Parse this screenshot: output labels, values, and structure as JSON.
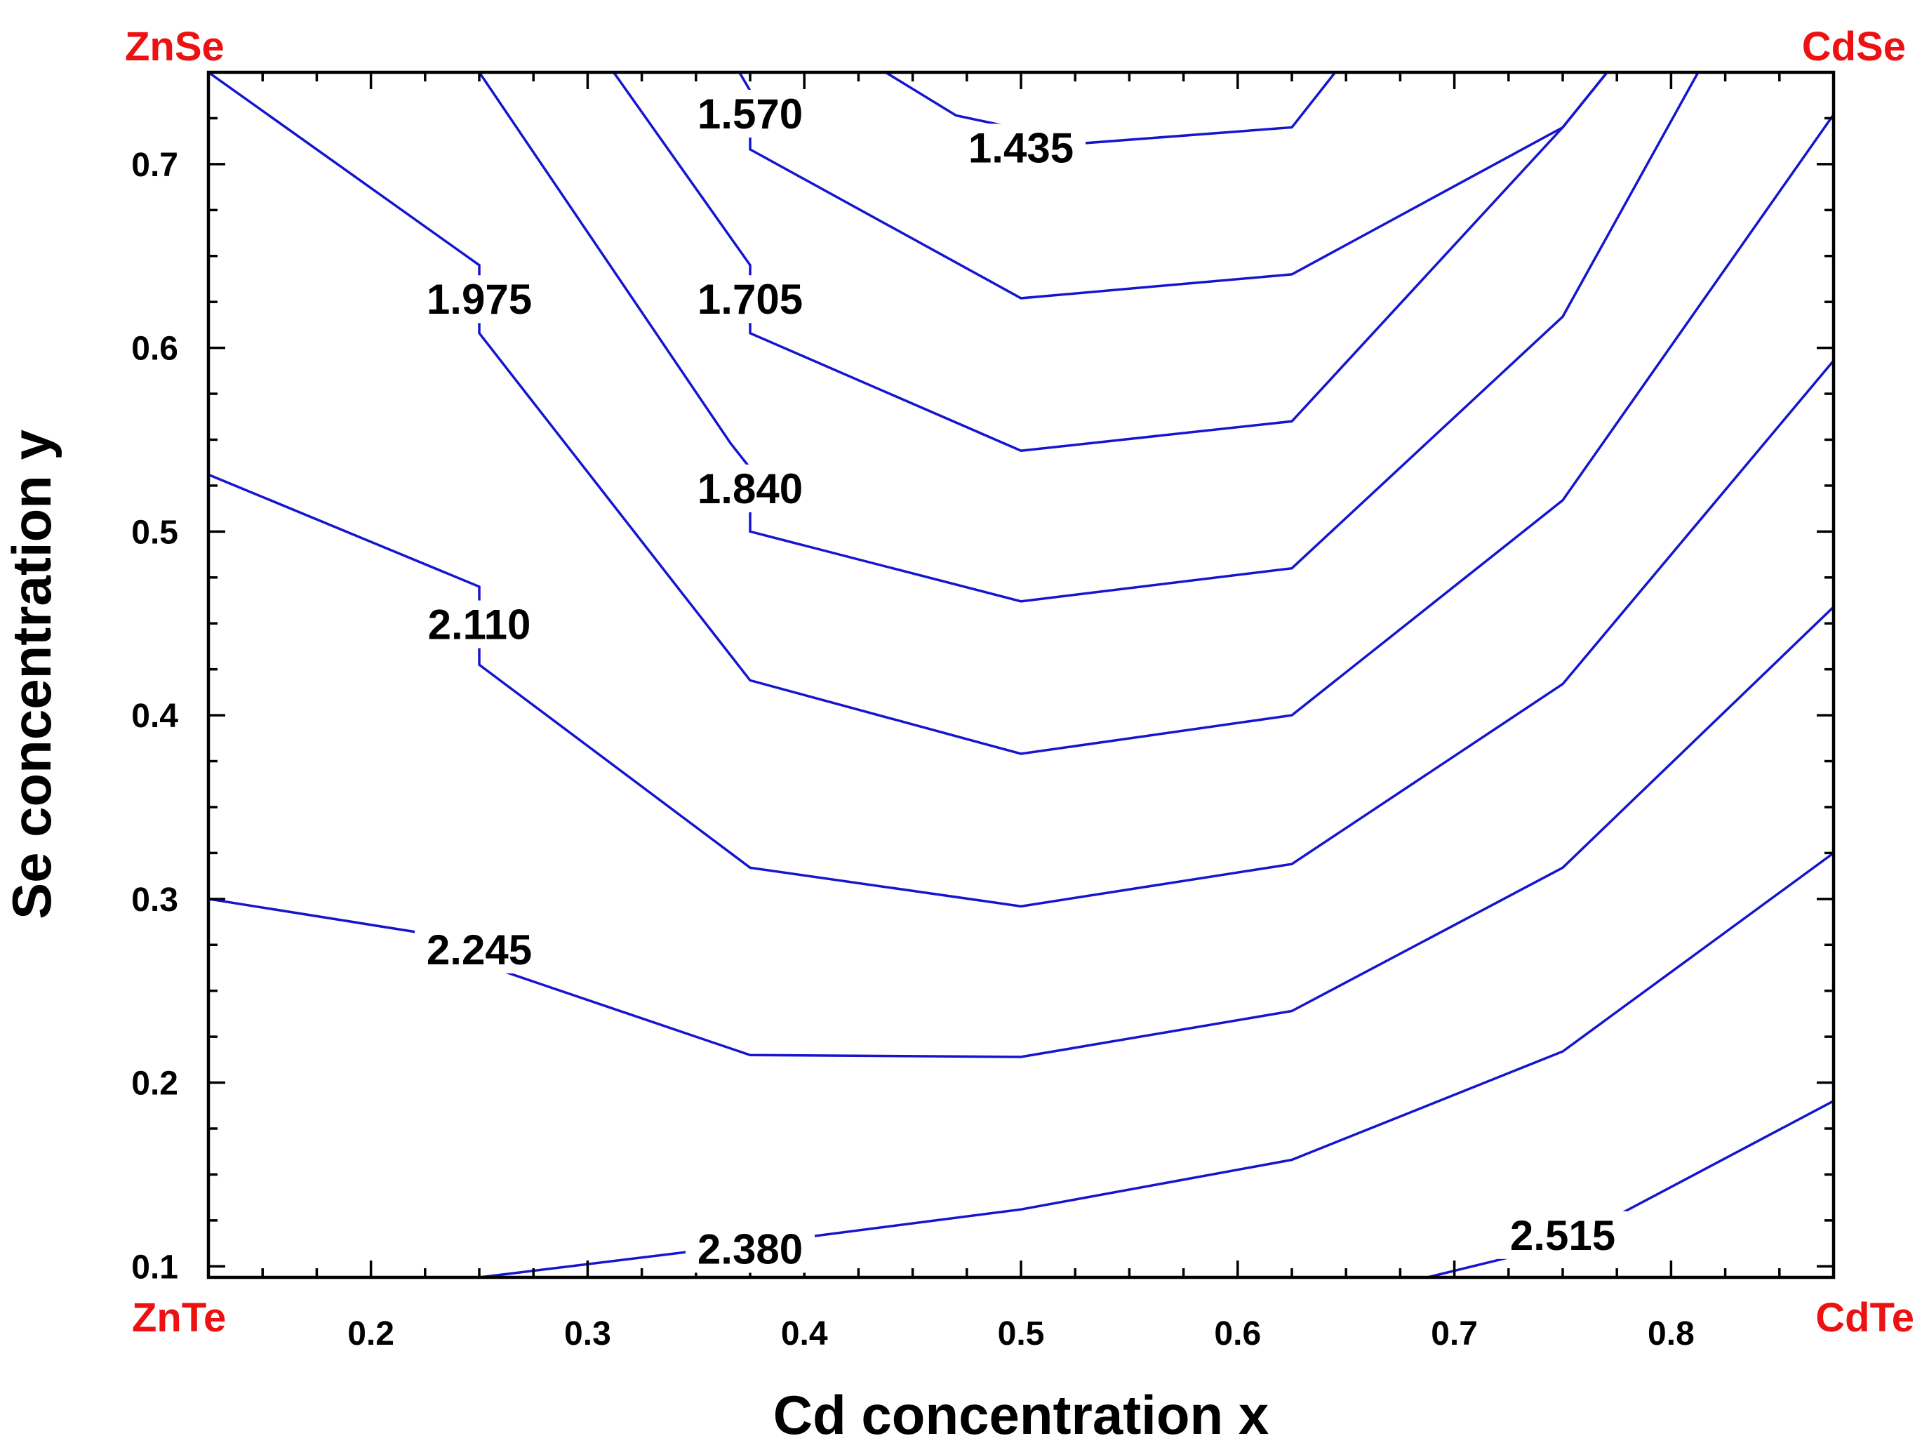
{
  "chart_data": {
    "type": "contour",
    "xlabel": "Cd concentration x",
    "ylabel": "Se concentration y",
    "xlim": [
      0.125,
      0.875
    ],
    "ylim": [
      0.094,
      0.75
    ],
    "x_ticks": [
      {
        "value": 0.2,
        "label": "0.2"
      },
      {
        "value": 0.3,
        "label": "0.3"
      },
      {
        "value": 0.4,
        "label": "0.4"
      },
      {
        "value": 0.5,
        "label": "0.5"
      },
      {
        "value": 0.6,
        "label": "0.6"
      },
      {
        "value": 0.7,
        "label": "0.7"
      },
      {
        "value": 0.8,
        "label": "0.8"
      }
    ],
    "y_ticks": [
      {
        "value": 0.1,
        "label": "0.1"
      },
      {
        "value": 0.2,
        "label": "0.2"
      },
      {
        "value": 0.3,
        "label": "0.3"
      },
      {
        "value": 0.4,
        "label": "0.4"
      },
      {
        "value": 0.5,
        "label": "0.5"
      },
      {
        "value": 0.6,
        "label": "0.6"
      },
      {
        "value": 0.7,
        "label": "0.7"
      }
    ],
    "corner_labels": {
      "top_left": "ZnSe",
      "top_right": "CdSe",
      "bottom_left": "ZnTe",
      "bottom_right": "CdTe"
    },
    "colors": {
      "contour": "#1515d0",
      "corner": "#ee1111",
      "frame": "#000000"
    },
    "contours": [
      {
        "level": "1.435",
        "label_at": [
          0.5,
          0.709
        ],
        "points": [
          [
            0.4375,
            0.75
          ],
          [
            0.47,
            0.7265
          ],
          [
            0.53,
            0.7115
          ],
          [
            0.625,
            0.72
          ],
          [
            0.645,
            0.75
          ]
        ]
      },
      {
        "level": "1.570",
        "label_at": [
          0.375,
          0.7275
        ],
        "points": [
          [
            0.37,
            0.75
          ],
          [
            0.375,
            0.74
          ],
          [
            0.375,
            0.708
          ],
          [
            0.5,
            0.627
          ],
          [
            0.625,
            0.64
          ],
          [
            0.75,
            0.72
          ],
          [
            0.7705,
            0.75
          ]
        ]
      },
      {
        "level": "1.705",
        "label_at": [
          0.375,
          0.6265
        ],
        "points": [
          [
            0.312,
            0.75
          ],
          [
            0.375,
            0.645
          ],
          [
            0.375,
            0.608
          ],
          [
            0.5,
            0.544
          ],
          [
            0.625,
            0.56
          ],
          [
            0.75,
            0.72
          ],
          [
            0.7705,
            0.75
          ]
        ]
      },
      {
        "level": "1.840",
        "label_at": [
          0.375,
          0.5235
        ],
        "points": [
          [
            0.25,
            0.75
          ],
          [
            0.366,
            0.548
          ],
          [
            0.375,
            0.5345
          ],
          [
            0.375,
            0.5
          ],
          [
            0.5,
            0.462
          ],
          [
            0.625,
            0.48
          ],
          [
            0.75,
            0.617
          ],
          [
            0.8125,
            0.75
          ]
        ]
      },
      {
        "level": "1.975",
        "label_at": [
          0.25,
          0.6265
        ],
        "points": [
          [
            0.125,
            0.75
          ],
          [
            0.25,
            0.645
          ],
          [
            0.25,
            0.608
          ],
          [
            0.375,
            0.419
          ],
          [
            0.5,
            0.379
          ],
          [
            0.625,
            0.4
          ],
          [
            0.75,
            0.517
          ],
          [
            0.875,
            0.727
          ]
        ]
      },
      {
        "level": "2.110",
        "label_at": [
          0.25,
          0.4495
        ],
        "points": [
          [
            0.125,
            0.531
          ],
          [
            0.25,
            0.47
          ],
          [
            0.25,
            0.4275
          ],
          [
            0.375,
            0.317
          ],
          [
            0.5,
            0.296
          ],
          [
            0.625,
            0.319
          ],
          [
            0.75,
            0.417
          ],
          [
            0.875,
            0.593
          ]
        ]
      },
      {
        "level": "2.245",
        "label_at": [
          0.25,
          0.2725
        ],
        "points": [
          [
            0.125,
            0.3
          ],
          [
            0.25,
            0.2765
          ],
          [
            0.25,
            0.265
          ],
          [
            0.375,
            0.215
          ],
          [
            0.5,
            0.214
          ],
          [
            0.625,
            0.239
          ],
          [
            0.75,
            0.317
          ],
          [
            0.875,
            0.459
          ]
        ]
      },
      {
        "level": "2.380",
        "label_at": [
          0.375,
          0.1095
        ],
        "points": [
          [
            0.25,
            0.094
          ],
          [
            0.375,
            0.112
          ],
          [
            0.5,
            0.131
          ],
          [
            0.625,
            0.158
          ],
          [
            0.75,
            0.217
          ],
          [
            0.875,
            0.325
          ]
        ]
      },
      {
        "level": "2.515",
        "label_at": [
          0.75,
          0.117
        ],
        "points": [
          [
            0.6875,
            0.094
          ],
          [
            0.75,
            0.112
          ],
          [
            0.875,
            0.19
          ]
        ]
      }
    ]
  }
}
